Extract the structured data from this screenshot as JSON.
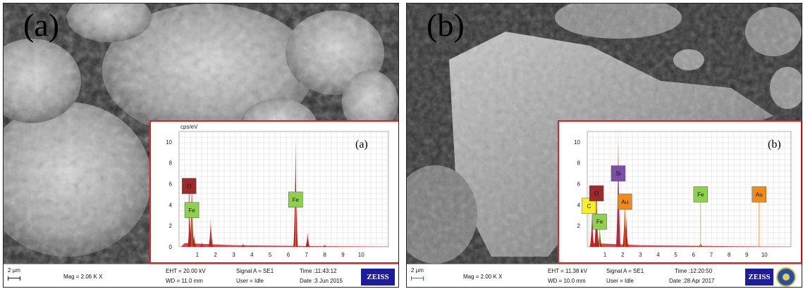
{
  "panels": [
    {
      "label": "(a)",
      "inset_label": "(a)",
      "inset_axis_caption": "cps/eV",
      "spectrum": {
        "x_ticks": [
          "1",
          "2",
          "3",
          "4",
          "5",
          "6",
          "7",
          "8",
          "9",
          "10"
        ],
        "y_ticks": [
          "0",
          "2",
          "4",
          "6",
          "8",
          "10"
        ],
        "xlim": [
          0,
          11.5
        ],
        "ylim": [
          0,
          11
        ],
        "peaks": [
          {
            "x": 0.7,
            "y": 6.7
          },
          {
            "x": 0.58,
            "y": 3.2
          },
          {
            "x": 0.82,
            "y": 1.2
          },
          {
            "x": 1.25,
            "y": 0.4
          },
          {
            "x": 1.74,
            "y": 2.7
          },
          {
            "x": 3.52,
            "y": 0.3
          },
          {
            "x": 6.4,
            "y": 10.6
          },
          {
            "x": 7.06,
            "y": 1.4
          },
          {
            "x": 8.0,
            "y": 0.2
          }
        ],
        "element_labels": [
          {
            "text": "O",
            "x": 0.55,
            "y": 5.8,
            "color": "#9b2a2a"
          },
          {
            "text": "Fe",
            "x": 0.7,
            "y": 3.5,
            "color": "#8fd14f"
          },
          {
            "text": "Fe",
            "x": 6.4,
            "y": 4.5,
            "color": "#8fd14f"
          }
        ]
      },
      "databar": {
        "scale": "2 µm",
        "mag": "Mag =  2.06 K X",
        "eht": "EHT = 20.00 kV",
        "wd": "WD = 11.0 mm",
        "signal": "Signal A = SE1",
        "user": "User = Idle",
        "time": "Time :11:43:12",
        "date": "Date :3 Jun 2015",
        "logo": "ZEISS"
      }
    },
    {
      "label": "(b)",
      "inset_label": "(b)",
      "spectrum": {
        "x_ticks": [
          "1",
          "2",
          "3",
          "4",
          "5",
          "6",
          "7",
          "8",
          "9",
          "10"
        ],
        "y_ticks": [
          "2",
          "4",
          "6",
          "8",
          "10"
        ],
        "xlim": [
          0,
          11.5
        ],
        "ylim": [
          0,
          11
        ],
        "peaks": [
          {
            "x": 0.27,
            "y": 3.3
          },
          {
            "x": 0.52,
            "y": 5.7
          },
          {
            "x": 0.7,
            "y": 2.2
          },
          {
            "x": 1.75,
            "y": 11.2
          },
          {
            "x": 2.12,
            "y": 5.0
          },
          {
            "x": 2.2,
            "y": 3.0
          },
          {
            "x": 6.4,
            "y": 0.4
          }
        ],
        "element_labels": [
          {
            "text": "C",
            "x": 0.1,
            "y": 3.9,
            "color": "#f4ef2a"
          },
          {
            "text": "O",
            "x": 0.52,
            "y": 5.1,
            "color": "#9b2a2a"
          },
          {
            "text": "Fe",
            "x": 0.7,
            "y": 2.4,
            "color": "#8fd14f"
          },
          {
            "text": "Si",
            "x": 1.75,
            "y": 7.0,
            "color": "#7b4fa8"
          },
          {
            "text": "Au",
            "x": 2.12,
            "y": 4.3,
            "color": "#ef8a1d"
          },
          {
            "text": "Fe",
            "x": 6.4,
            "y": 5.0,
            "color": "#8fd14f"
          },
          {
            "text": "Au",
            "x": 9.7,
            "y": 5.0,
            "color": "#ef8a1d"
          }
        ]
      },
      "databar": {
        "scale": "2 µm",
        "mag": "Mag =  2.00 K X",
        "eht": "EHT = 11.38 kV",
        "wd": "WD = 10.0 mm",
        "signal": "Signal A = SE1",
        "user": "User = Idle",
        "time": "Time :12:20:50",
        "date": "Date :28 Apr 2017",
        "logo": "ZEISS"
      }
    }
  ],
  "colors": {
    "spectrum_fill": "#c41e1e",
    "inset_border": "#d22222",
    "grid": "#d9d9d9"
  }
}
